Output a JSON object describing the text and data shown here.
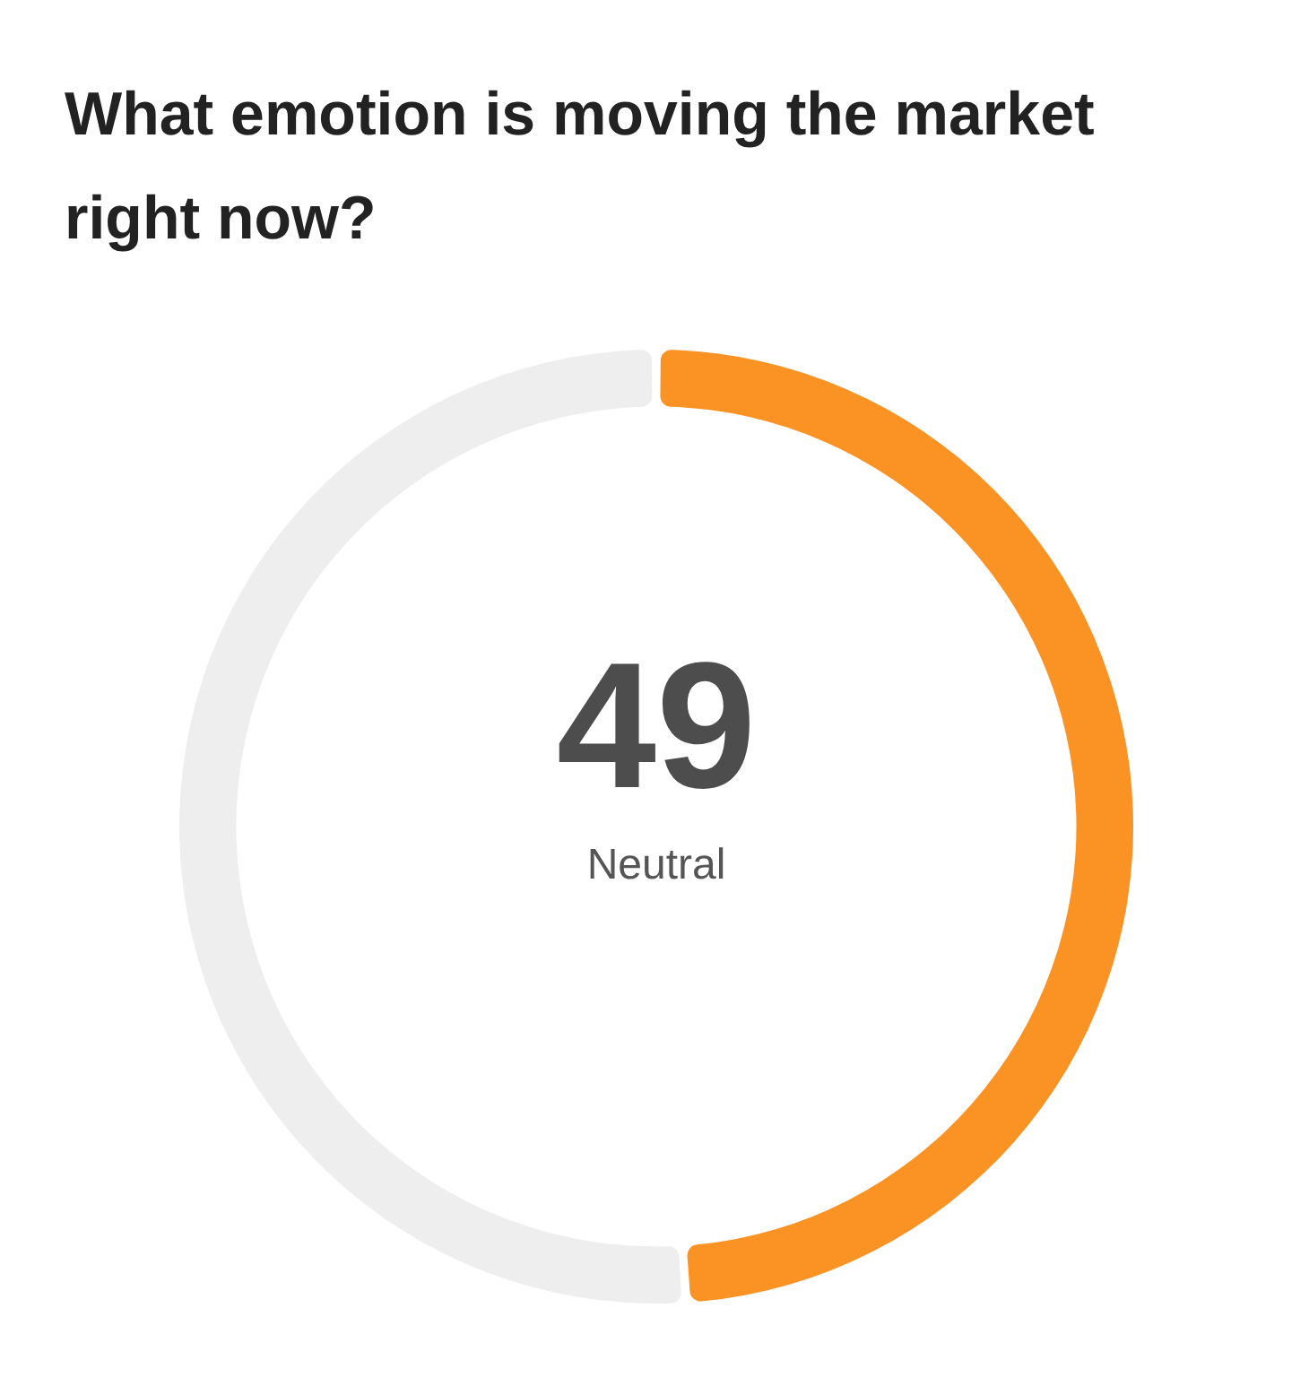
{
  "chart_data": {
    "type": "donut",
    "title": "What emotion is moving the market right now?",
    "categories": [
      null,
      null
    ],
    "values": [
      49,
      51
    ],
    "colors": [
      "#fb9224",
      "#eeeeee"
    ],
    "value_labels": [
      "49",
      null
    ],
    "annotations": [
      "Neutral"
    ]
  }
}
